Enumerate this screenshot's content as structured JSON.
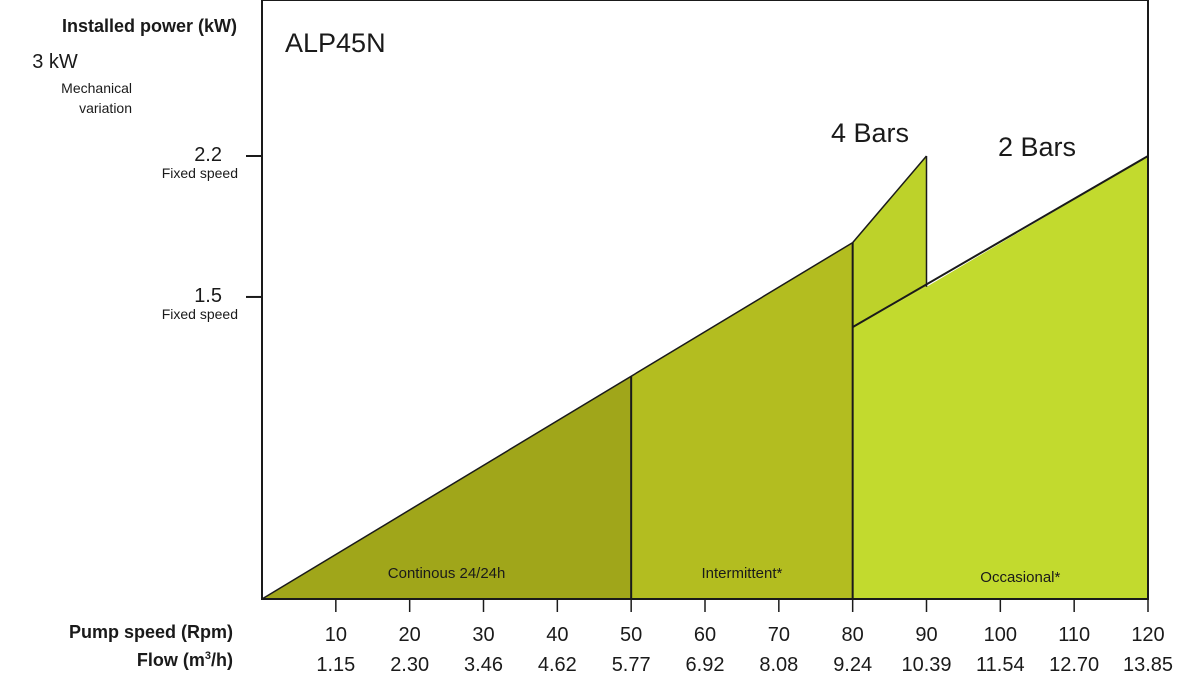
{
  "chart_data": {
    "type": "area",
    "title": "ALP45N",
    "ylabel": "Installed power (kW)",
    "y_top_label": {
      "value": "3 kW",
      "note_line1": "Mechanical",
      "note_line2": "variation"
    },
    "y_ticks": [
      {
        "value": 2.2,
        "label": "2.2",
        "sublabel": "Fixed speed"
      },
      {
        "value": 1.5,
        "label": "1.5",
        "sublabel": "Fixed speed"
      }
    ],
    "xlabel": "Pump speed (Rpm)",
    "xlabel2_pre": "Flow (m",
    "xlabel2_sup": "3",
    "xlabel2_post": "/h)",
    "xlim": [
      0,
      120
    ],
    "ylim": [
      0,
      3
    ],
    "x_ticks": [
      {
        "value": 10,
        "label": "10",
        "flow": "1.15"
      },
      {
        "value": 20,
        "label": "20",
        "flow": "2.30"
      },
      {
        "value": 30,
        "label": "30",
        "flow": "3.46"
      },
      {
        "value": 40,
        "label": "40",
        "flow": "4.62"
      },
      {
        "value": 50,
        "label": "50",
        "flow": "5.77"
      },
      {
        "value": 60,
        "label": "60",
        "flow": "6.92"
      },
      {
        "value": 70,
        "label": "70",
        "flow": "8.08"
      },
      {
        "value": 80,
        "label": "80",
        "flow": "9.24"
      },
      {
        "value": 90,
        "label": "90",
        "flow": "10.39"
      },
      {
        "value": 100,
        "label": "100",
        "flow": "11.54"
      },
      {
        "value": 110,
        "label": "110",
        "flow": "12.70"
      },
      {
        "value": 120,
        "label": "120",
        "flow": "13.85"
      }
    ],
    "series": [
      {
        "name": "4 Bars",
        "points": [
          [
            0,
            0
          ],
          [
            80,
            1.77
          ],
          [
            90,
            2.2
          ],
          [
            90,
            1.77
          ]
        ]
      },
      {
        "name": "2 Bars",
        "points": [
          [
            80,
            1.35
          ],
          [
            90,
            1.55
          ],
          [
            120,
            2.2
          ]
        ]
      }
    ],
    "regions": [
      {
        "label": "Continous 24/24h",
        "from": 0,
        "to": 50,
        "color": "#a0a61a"
      },
      {
        "label": "Intermittent*",
        "from": 50,
        "to": 80,
        "color": "#b3bd20"
      },
      {
        "label": "Occasional*",
        "from": 80,
        "to": 120,
        "color": "#c2da2e"
      }
    ],
    "fill_4bars_tip": "#bdd22a"
  }
}
